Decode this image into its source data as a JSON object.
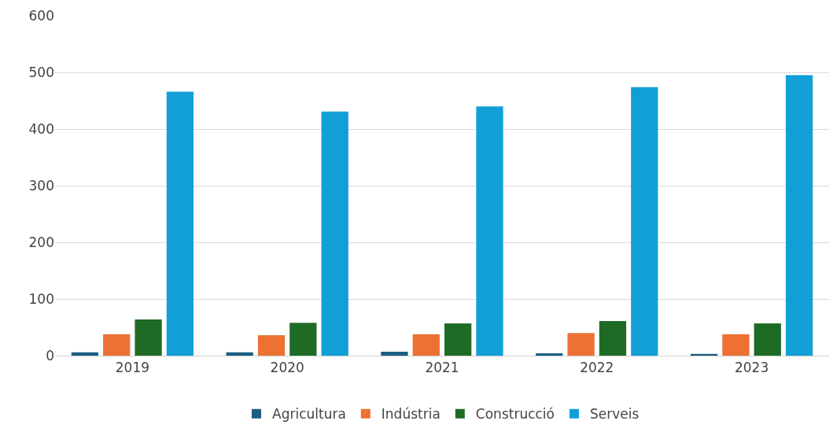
{
  "chart_data": {
    "type": "bar",
    "categories": [
      "2019",
      "2020",
      "2021",
      "2022",
      "2023"
    ],
    "series": [
      {
        "name": "Agricultura",
        "color": "#1b5e82",
        "values": [
          6,
          6,
          7,
          4,
          3
        ]
      },
      {
        "name": "Indústria",
        "color": "#ed7133",
        "values": [
          38,
          36,
          38,
          40,
          38
        ]
      },
      {
        "name": "Construcció",
        "color": "#1e6b26",
        "values": [
          64,
          58,
          57,
          61,
          57
        ]
      },
      {
        "name": "Serveis",
        "color": "#129fd8",
        "values": [
          466,
          431,
          440,
          474,
          495
        ]
      }
    ],
    "ylim": [
      0,
      600
    ],
    "yticks": [
      0,
      100,
      200,
      300,
      400,
      500,
      600
    ],
    "grid": "y",
    "legend": "bottom"
  }
}
